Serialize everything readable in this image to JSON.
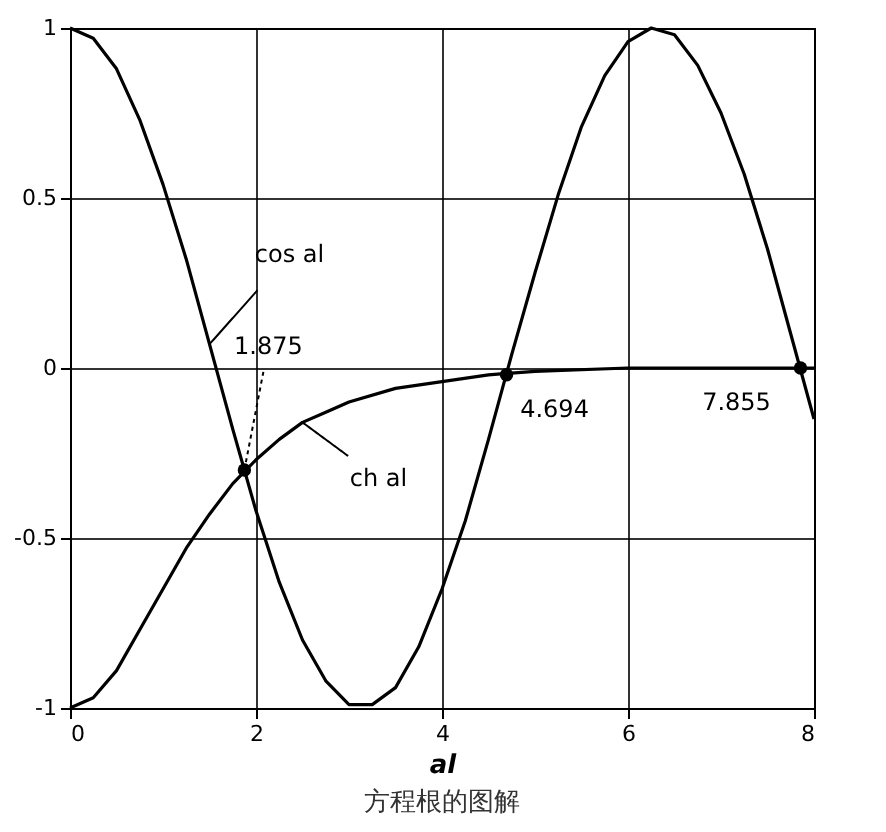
{
  "chart_data": {
    "type": "line",
    "xlabel": "al",
    "xlim": [
      0,
      8
    ],
    "ylim": [
      -1,
      1
    ],
    "xticks": [
      0,
      2,
      4,
      6,
      8
    ],
    "yticks": [
      -1,
      -0.5,
      0,
      0.5,
      1
    ],
    "grid": true,
    "series": [
      {
        "color": "#000000",
        "x": [
          0,
          0.25,
          0.5,
          0.75,
          1,
          1.25,
          1.5,
          1.75,
          2,
          2.25,
          2.5,
          2.75,
          3,
          3.25,
          3.5,
          3.75,
          4,
          4.25,
          4.5,
          4.75,
          5,
          5.25,
          5.5,
          5.75,
          6,
          6.25,
          6.5,
          6.75,
          7,
          7.25,
          7.5,
          7.75,
          8
        ],
        "values": [
          1,
          0.97,
          0.88,
          0.73,
          0.54,
          0.32,
          0.07,
          -0.18,
          -0.42,
          -0.63,
          -0.8,
          -0.92,
          -0.99,
          -0.99,
          -0.94,
          -0.82,
          -0.65,
          -0.45,
          -0.21,
          0.04,
          0.28,
          0.51,
          0.71,
          0.86,
          0.96,
          1,
          0.98,
          0.89,
          0.75,
          0.57,
          0.35,
          0.1,
          -0.15
        ]
      },
      {
        "color": "#000000",
        "x": [
          0,
          0.25,
          0.5,
          0.75,
          1,
          1.25,
          1.5,
          1.75,
          2,
          2.25,
          2.5,
          2.75,
          3,
          3.5,
          4,
          4.5,
          5,
          6,
          7,
          8
        ],
        "values": [
          -1,
          -0.97,
          -0.89,
          -0.77,
          -0.65,
          -0.53,
          -0.43,
          -0.34,
          -0.27,
          -0.21,
          -0.16,
          -0.13,
          -0.1,
          -0.06,
          -0.04,
          -0.02,
          -0.01,
          0,
          0,
          0
        ]
      },
      {
        "type": "scatter",
        "marker": "circle",
        "color": "#000000",
        "x": [
          1.875,
          4.694,
          7.855
        ],
        "values": [
          -0.3,
          -0.02,
          0
        ]
      }
    ],
    "annotations": [
      {
        "text": "cos al",
        "x": 1.5,
        "y": 0.07
      },
      {
        "text": "ch al",
        "x": 2.5,
        "y": -0.16
      },
      {
        "text": "1.875",
        "x": 1.875,
        "y": -0.3
      },
      {
        "text": "4.694",
        "x": 4.694,
        "y": -0.02
      },
      {
        "text": "7.855",
        "x": 7.855,
        "y": 0
      },
      "方程根的图解"
    ]
  }
}
